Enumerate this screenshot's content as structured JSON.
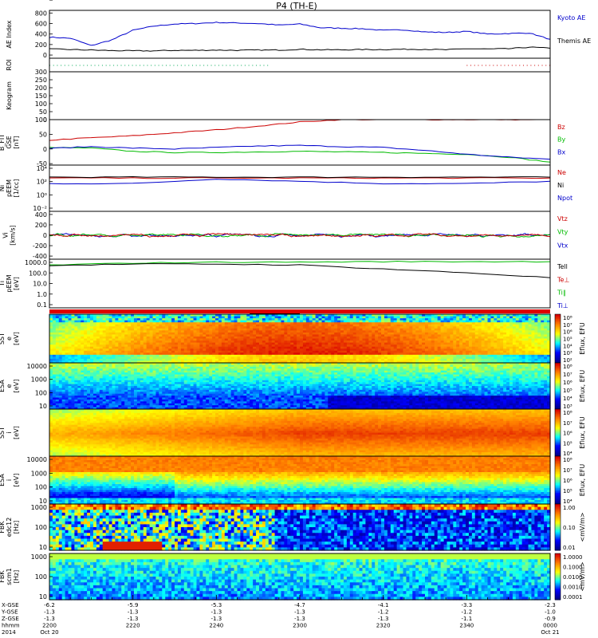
{
  "title": "P4 (TH-E)",
  "chart_data": [
    {
      "panel": "ae",
      "type": "line",
      "ylabel": "AE Index",
      "yticks": [
        "800",
        "600",
        "400",
        "200",
        "0"
      ],
      "ylim": [
        -60,
        850
      ],
      "x": [
        0,
        5,
        10,
        15,
        20,
        25,
        30,
        35,
        40,
        45,
        50,
        55,
        60,
        65,
        70,
        75,
        80,
        85,
        90,
        95,
        100,
        105,
        110,
        115,
        120
      ],
      "series": [
        {
          "name": "Kyoto AE",
          "color": "#0000cc",
          "values": [
            340,
            320,
            180,
            290,
            470,
            550,
            590,
            600,
            620,
            610,
            600,
            570,
            590,
            520,
            510,
            500,
            470,
            480,
            440,
            430,
            450,
            400,
            410,
            420,
            300
          ]
        },
        {
          "name": "Themis AE",
          "color": "#000000",
          "values": [
            115,
            105,
            95,
            85,
            80,
            80,
            90,
            90,
            95,
            90,
            95,
            95,
            110,
            100,
            100,
            105,
            105,
            110,
            110,
            100,
            120,
            115,
            120,
            150,
            130
          ]
        }
      ]
    },
    {
      "panel": "roi",
      "ylabel": "ROI",
      "type": "scatter",
      "series": [
        {
          "color": "#00aa55",
          "range_minutes": [
            0,
            53
          ]
        },
        {
          "color": "#cc0000",
          "range_minutes": [
            100,
            120
          ]
        }
      ]
    },
    {
      "panel": "keogram",
      "type": "heatmap",
      "ylabel": "Keogram",
      "yticks": [
        "300",
        "250",
        "200",
        "150",
        "100",
        "50",
        "0"
      ],
      "ylim": [
        0,
        300
      ]
    },
    {
      "panel": "bfield",
      "type": "line",
      "ylabel": "B_FIT\nGSE\n[nT]",
      "yticks": [
        "100",
        "50",
        "0",
        "-50"
      ],
      "ylim": [
        -55,
        100
      ],
      "x": [
        0,
        10,
        20,
        30,
        40,
        50,
        60,
        70,
        80,
        90,
        100,
        110,
        120
      ],
      "series": [
        {
          "name": "Bz",
          "color": "#cc0000",
          "values": [
            30,
            38,
            45,
            55,
            65,
            78,
            92,
            100,
            100,
            100,
            100,
            100,
            100
          ]
        },
        {
          "name": "By",
          "color": "#00bb00",
          "values": [
            5,
            3,
            -8,
            -12,
            -12,
            -10,
            -8,
            -10,
            -12,
            -15,
            -18,
            -28,
            -45
          ]
        },
        {
          "name": "Bx",
          "color": "#0000cc",
          "values": [
            2,
            8,
            3,
            0,
            5,
            10,
            12,
            8,
            5,
            -5,
            -18,
            -28,
            -35
          ]
        }
      ]
    },
    {
      "panel": "density",
      "type": "line",
      "ylabel": "Ni\npEEM\n[1/cc]",
      "yticks": [
        "10⁴",
        "10²",
        "10⁰",
        "10⁻²"
      ],
      "series": [
        {
          "name": "Ne",
          "color": "#cc0000"
        },
        {
          "name": "Ni",
          "color": "#000000"
        },
        {
          "name": "Npot",
          "color": "#0000cc"
        }
      ]
    },
    {
      "panel": "velocity",
      "type": "line",
      "ylabel": "Vi\n[km/s]",
      "yticks": [
        "400",
        "200",
        "0",
        "-200",
        "-400"
      ],
      "ylim": [
        -460,
        460
      ],
      "series": [
        {
          "name": "Vtz",
          "color": "#cc0000"
        },
        {
          "name": "Vty",
          "color": "#00bb00"
        },
        {
          "name": "Vtx",
          "color": "#0000cc"
        }
      ]
    },
    {
      "panel": "temperature",
      "type": "line",
      "ylabel": "Ti\npEEM\n[eV]",
      "yticks": [
        "1000.0",
        "100.0",
        "10.0",
        "1.0",
        "0.1"
      ],
      "series": [
        {
          "name": "Tell",
          "color": "#000000"
        },
        {
          "name": "Te⊥",
          "color": "#cc0000"
        },
        {
          "name": "Ti∥",
          "color": "#00bb00"
        },
        {
          "name": "Ti⊥",
          "color": "#0000cc"
        }
      ]
    },
    {
      "panel": "sst_e",
      "type": "heatmap",
      "ylabel": "SST\ne\n[eV]",
      "yticks": [
        "10⁴"
      ],
      "colorbar": {
        "label": "Eflux, EFU",
        "ticks": [
          "10⁸",
          "10⁷",
          "10⁶",
          "10⁵",
          "10⁴",
          "10³",
          "10²"
        ]
      }
    },
    {
      "panel": "esa_e",
      "type": "heatmap",
      "ylabel": "ESA\ne\n[eV]",
      "yticks": [
        "10000",
        "1000",
        "100",
        "10"
      ],
      "colorbar": {
        "label": "Eflux, EFU",
        "ticks": [
          "10⁸",
          "10⁷",
          "10⁶",
          "10⁵",
          "10⁴",
          "10³"
        ]
      }
    },
    {
      "panel": "sst_i",
      "type": "heatmap",
      "ylabel": "SST\ni\n[eV]",
      "yticks": [
        "10⁵"
      ],
      "colorbar": {
        "label": "Eflux, EFU",
        "ticks": [
          "10⁸",
          "10⁷",
          "10⁶",
          "10⁵",
          "10⁴"
        ]
      }
    },
    {
      "panel": "esa_i",
      "type": "heatmap",
      "ylabel": "ESA\ni\n[eV]",
      "yticks": [
        "10000",
        "1000",
        "100",
        "10"
      ],
      "colorbar": {
        "label": "Eflux, EFU",
        "ticks": [
          "10⁸",
          "10⁷",
          "10⁶",
          "10⁵",
          "10⁴"
        ]
      }
    },
    {
      "panel": "fbk_edc",
      "type": "heatmap",
      "ylabel": "FBK\nedc12\n[Hz]",
      "yticks": [
        "1000",
        "100",
        "10"
      ],
      "colorbar": {
        "label": "<mV/m>",
        "ticks": [
          "1.00",
          "0.10",
          "0.01"
        ]
      }
    },
    {
      "panel": "fbk_scm",
      "type": "heatmap",
      "ylabel": "FBK\nscm1\n[Hz]",
      "yticks": [
        "1000",
        "100",
        "10"
      ],
      "colorbar": {
        "label": "<mV/m>",
        "ticks": [
          "1.0000",
          "0.1000",
          "0.0100",
          "0.0010",
          "0.0001"
        ]
      }
    }
  ],
  "xaxis": {
    "row_labels": [
      "X-GSE",
      "Y-GSE",
      "Z-GSE",
      "hhmm",
      "2014"
    ],
    "ticks": [
      {
        "minute": 0,
        "lines": [
          "-6.2",
          "-1.3",
          "-1.3",
          "2200",
          "Oct 20"
        ]
      },
      {
        "minute": 20,
        "lines": [
          "-5.9",
          "-1.3",
          "-1.3",
          "2220",
          ""
        ]
      },
      {
        "minute": 40,
        "lines": [
          "-5.3",
          "-1.3",
          "-1.3",
          "2240",
          ""
        ]
      },
      {
        "minute": 60,
        "lines": [
          "-4.7",
          "-1.3",
          "-1.3",
          "2300",
          ""
        ]
      },
      {
        "minute": 80,
        "lines": [
          "-4.1",
          "-1.2",
          "-1.3",
          "2320",
          ""
        ]
      },
      {
        "minute": 100,
        "lines": [
          "-3.3",
          "-1.2",
          "-1.1",
          "2340",
          ""
        ]
      },
      {
        "minute": 120,
        "lines": [
          "-2.3",
          "-1.0",
          "-0.9",
          "0000",
          "Oct 21"
        ]
      }
    ]
  }
}
